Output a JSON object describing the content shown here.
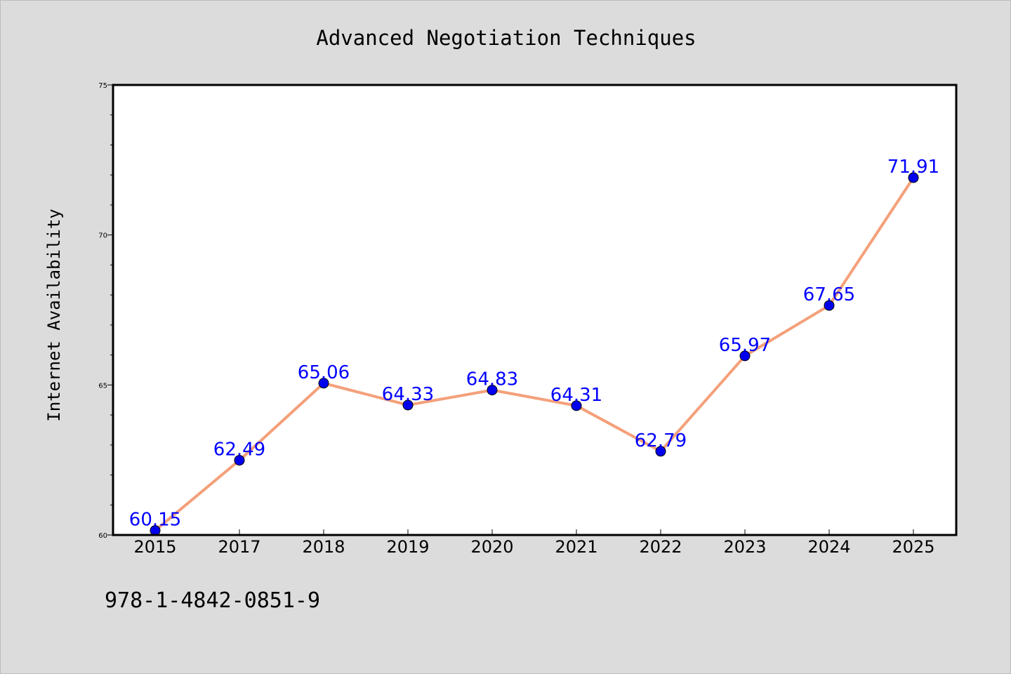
{
  "chart_data": {
    "type": "line",
    "title": "Advanced Negotiation Techniques",
    "xlabel": "",
    "ylabel": "Internet Availability",
    "categories": [
      "2015",
      "2017",
      "2018",
      "2019",
      "2020",
      "2021",
      "2022",
      "2023",
      "2024",
      "2025"
    ],
    "series": [
      {
        "values": [
          60.15,
          62.49,
          65.06,
          64.33,
          64.83,
          64.31,
          62.79,
          65.97,
          67.65,
          71.91
        ]
      }
    ],
    "data_labels": [
      "60.15",
      "62.49",
      "65.06",
      "64.33",
      "64.83",
      "64.31",
      "62.79",
      "65.97",
      "67.65",
      "71.91"
    ],
    "ylim": [
      60,
      75
    ],
    "yticks": [
      60,
      65,
      70,
      75
    ],
    "grid": false,
    "legend": "none",
    "colors": {
      "line": "#f4a07a",
      "marker": "#0000ee",
      "data_label": "#0000ff",
      "plot_background": "#ffffff",
      "figure_background": "#dcdcdc"
    }
  },
  "footer": {
    "isbn": "978-1-4842-0851-9"
  }
}
